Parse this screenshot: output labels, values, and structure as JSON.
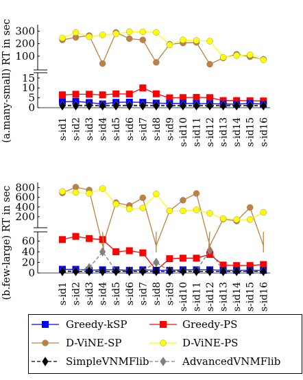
{
  "chart_data": [
    {
      "id": "top",
      "type": "line",
      "ylabel": "(a.many-small) RT in sec",
      "categories": [
        "s-id1",
        "s-id2",
        "s-id3",
        "s-id4",
        "s-id5",
        "s-id6",
        "s-id7",
        "s-id8",
        "s-id9",
        "s-id10",
        "s-id11",
        "s-id12",
        "s-id13",
        "s-id14",
        "s-id15",
        "s-id16"
      ],
      "upper_axis": {
        "ylim": [
          0,
          330
        ],
        "ticks": [
          100,
          200,
          300
        ]
      },
      "lower_axis": {
        "ylim": [
          0,
          17
        ],
        "ticks": [
          0,
          5,
          10,
          15
        ]
      },
      "series": [
        {
          "key": "greedy_ksp",
          "name": "Greedy-kSP",
          "upper": [
            null,
            null,
            null,
            null,
            null,
            null,
            null,
            null,
            null,
            null,
            null,
            null,
            null,
            null,
            null,
            null
          ],
          "lower": [
            3,
            3.2,
            2.6,
            1.9,
            2.7,
            2.8,
            2.7,
            2.3,
            2.2,
            2.2,
            2.1,
            2.0,
            1.9,
            1.8,
            2.2,
            1.8
          ]
        },
        {
          "key": "greedy_ps",
          "name": "Greedy-PS",
          "upper": [
            null,
            null,
            null,
            null,
            null,
            null,
            null,
            null,
            null,
            null,
            null,
            null,
            null,
            null,
            null,
            null
          ],
          "lower": [
            6.5,
            6.8,
            6.8,
            6.5,
            7.0,
            6.9,
            10.0,
            7.0,
            5.0,
            5.1,
            5.2,
            5.1,
            3.6,
            3.6,
            3.5,
            3.4
          ]
        },
        {
          "key": "dvine_sp",
          "name": "D-ViNE-SP",
          "upper": [
            230,
            250,
            265,
            40,
            290,
            240,
            230,
            50,
            195,
            205,
            210,
            35,
            85,
            115,
            95,
            75
          ],
          "lower": [
            null,
            null,
            null,
            null,
            null,
            null,
            null,
            null,
            null,
            null,
            null,
            null,
            null,
            null,
            null,
            null
          ]
        },
        {
          "key": "dvine_ps",
          "name": "D-ViNE-PS",
          "upper": [
            245,
            290,
            255,
            270,
            280,
            295,
            295,
            290,
            190,
            230,
            225,
            220,
            90,
            105,
            110,
            70
          ],
          "lower": [
            null,
            null,
            null,
            null,
            null,
            null,
            null,
            null,
            null,
            null,
            null,
            null,
            null,
            null,
            null,
            null
          ]
        },
        {
          "key": "simple",
          "name": "SimpleVNMFlib",
          "upper": [
            null,
            null,
            null,
            null,
            null,
            null,
            null,
            null,
            null,
            null,
            null,
            null,
            null,
            null,
            null,
            null
          ],
          "lower": [
            1.0,
            1.0,
            1.0,
            1.0,
            1.0,
            1.0,
            1.0,
            1.0,
            1.0,
            1.0,
            1.0,
            1.0,
            1.0,
            1.0,
            1.0,
            1.0
          ]
        },
        {
          "key": "advanced",
          "name": "AdvancedVNMFlib",
          "upper": [
            null,
            null,
            null,
            null,
            null,
            null,
            null,
            null,
            null,
            null,
            null,
            null,
            null,
            null,
            null,
            null
          ],
          "lower": [
            1.3,
            1.3,
            1.3,
            1.3,
            1.3,
            1.3,
            1.3,
            1.3,
            1.3,
            1.3,
            1.3,
            1.3,
            1.3,
            1.3,
            1.3,
            1.3
          ]
        }
      ]
    },
    {
      "id": "bottom",
      "type": "line",
      "ylabel": "(b.few-large) RT in sec",
      "categories": [
        "s-id1",
        "s-id2",
        "s-id3",
        "s-id4",
        "s-id5",
        "s-id6",
        "s-id7",
        "s-id8",
        "s-id9",
        "s-id10",
        "s-id11",
        "s-id12",
        "s-id13",
        "s-id14",
        "s-id15",
        "s-id16"
      ],
      "upper_axis": {
        "ylim": [
          0,
          850
        ],
        "ticks": [
          200,
          400,
          600,
          800
        ]
      },
      "lower_axis": {
        "ylim": [
          0,
          75
        ],
        "ticks": [
          0,
          20,
          40,
          60
        ]
      },
      "series": [
        {
          "key": "greedy_ksp",
          "name": "Greedy-kSP",
          "upper": [
            null,
            null,
            null,
            null,
            null,
            null,
            null,
            null,
            null,
            null,
            null,
            null,
            null,
            null,
            null,
            null
          ],
          "lower": [
            7,
            7,
            5,
            6,
            6,
            5,
            6,
            5,
            5,
            6,
            6,
            6,
            5,
            5,
            5,
            5
          ]
        },
        {
          "key": "greedy_ps",
          "name": "Greedy-PS",
          "upper": [
            null,
            null,
            null,
            null,
            null,
            null,
            null,
            null,
            null,
            null,
            null,
            null,
            null,
            null,
            null,
            null
          ],
          "lower": [
            63,
            69,
            65,
            63,
            40,
            42,
            38,
            5,
            27,
            28,
            28,
            35,
            15,
            14,
            14,
            16
          ]
        },
        {
          "key": "dvine_sp",
          "name": "D-ViNE-SP",
          "upper": [
            690,
            810,
            750,
            -400,
            490,
            430,
            590,
            -400,
            320,
            540,
            680,
            -400,
            150,
            110,
            390,
            -400
          ],
          "lower": [
            null,
            null,
            null,
            null,
            null,
            null,
            null,
            null,
            null,
            null,
            null,
            null,
            null,
            null,
            null,
            null
          ]
        },
        {
          "key": "dvine_ps",
          "name": "D-ViNE-PS",
          "upper": [
            720,
            700,
            680,
            780,
            460,
            360,
            380,
            670,
            320,
            320,
            340,
            270,
            160,
            140,
            140,
            290
          ],
          "lower": [
            null,
            null,
            null,
            null,
            null,
            null,
            null,
            null,
            null,
            null,
            null,
            null,
            null,
            null,
            null,
            null
          ]
        },
        {
          "key": "simple",
          "name": "SimpleVNMFlib",
          "upper": [
            null,
            null,
            null,
            null,
            null,
            null,
            null,
            null,
            null,
            null,
            null,
            null,
            null,
            null,
            null,
            null
          ],
          "lower": [
            3,
            3,
            3,
            3,
            3,
            3,
            3,
            3,
            3,
            3,
            3,
            3,
            3,
            3,
            3,
            3
          ]
        },
        {
          "key": "advanced",
          "name": "AdvancedVNMFlib",
          "upper": [
            null,
            null,
            null,
            null,
            null,
            null,
            null,
            null,
            null,
            null,
            null,
            null,
            null,
            null,
            null,
            null
          ],
          "lower": [
            4,
            4,
            10,
            40,
            4,
            4,
            4,
            20,
            4,
            4,
            4,
            43,
            4,
            4,
            4,
            4
          ]
        }
      ]
    }
  ],
  "legend": {
    "placement": "bottom",
    "entries": [
      {
        "key": "greedy_ksp",
        "label": "Greedy-kSP",
        "color": "#0000ff",
        "marker": "square",
        "dashed": false
      },
      {
        "key": "greedy_ps",
        "label": "Greedy-PS",
        "color": "#ff0000",
        "marker": "square",
        "dashed": false
      },
      {
        "key": "dvine_sp",
        "label": "D-ViNE-SP",
        "color": "#bf8040",
        "marker": "circle",
        "dashed": false
      },
      {
        "key": "dvine_ps",
        "label": "D-ViNE-PS",
        "color": "#ffff00",
        "marker": "circle",
        "dashed": false
      },
      {
        "key": "simple",
        "label": "SimpleVNMFlib",
        "color": "#000000",
        "marker": "diamond",
        "dashed": true
      },
      {
        "key": "advanced",
        "label": "AdvancedVNMFlib",
        "color": "#808080",
        "marker": "diamond",
        "dashed": true
      }
    ]
  }
}
